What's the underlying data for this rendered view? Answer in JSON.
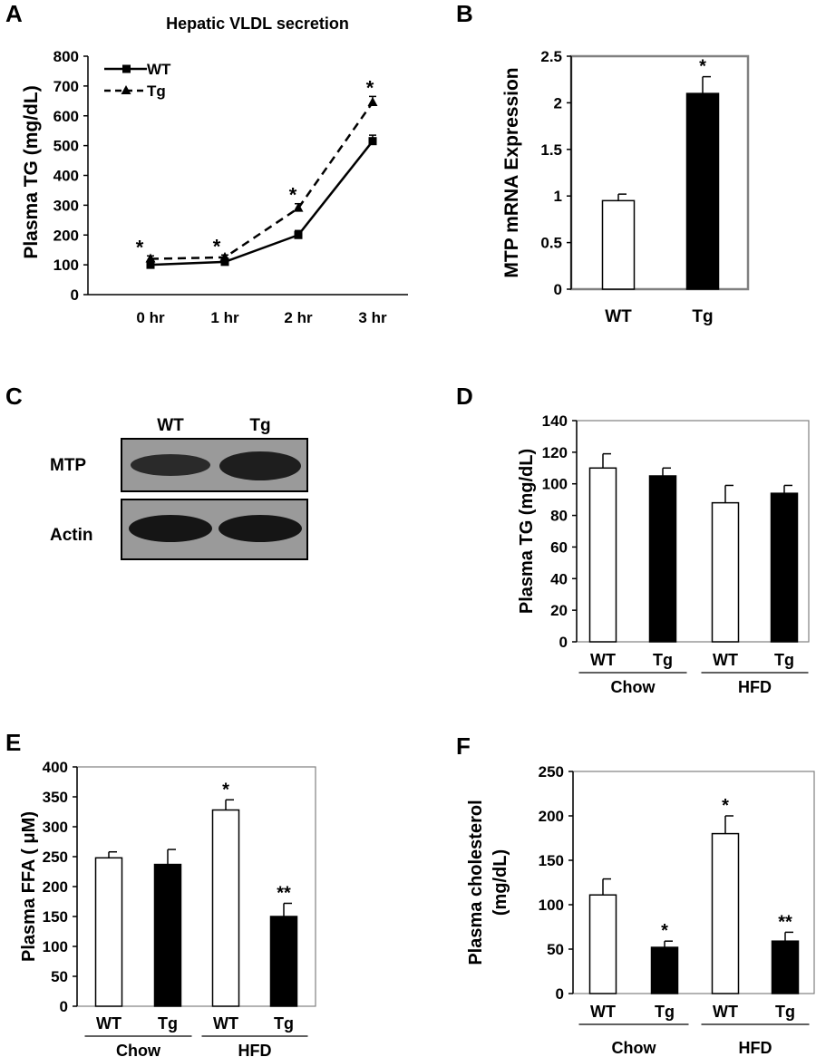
{
  "colors": {
    "wt_fill": "#ffffff",
    "tg_fill": "#000000",
    "frame": "#808080",
    "blot_bg": "#9a9a9a",
    "band": "#1e1e1e"
  },
  "chart_data": [
    {
      "panel": "A",
      "type": "line",
      "title": "Hepatic VLDL secretion",
      "ylabel": "Plasma TG (mg/dL)",
      "xlabel": "",
      "categories": [
        "0 hr",
        "1 hr",
        "2 hr",
        "3 hr"
      ],
      "yticks": [
        "0",
        "100",
        "200",
        "300",
        "400",
        "500",
        "600",
        "700",
        "800"
      ],
      "ylim": [
        0,
        800
      ],
      "series": [
        {
          "name": "WT",
          "values": [
            100,
            110,
            200,
            515
          ],
          "errors": [
            10,
            8,
            15,
            20
          ],
          "marker": "square",
          "dash": "solid"
        },
        {
          "name": "Tg",
          "values": [
            120,
            125,
            290,
            645
          ],
          "errors": [
            10,
            8,
            15,
            20
          ],
          "marker": "triangle",
          "dash": "dashed"
        }
      ],
      "annotations": [
        "*",
        "*",
        "*",
        "*"
      ],
      "legend": "top-left"
    },
    {
      "panel": "B",
      "type": "bar",
      "ylabel": "MTP mRNA Expression",
      "xlabel": "",
      "categories": [
        "WT",
        "Tg"
      ],
      "values": [
        0.95,
        2.1
      ],
      "errors": [
        0.07,
        0.18
      ],
      "yticks": [
        "0",
        "0.5",
        "1",
        "1.5",
        "2",
        "2.5"
      ],
      "ylim": [
        0,
        2.5
      ],
      "annotations": [
        "",
        "*"
      ]
    },
    {
      "panel": "D",
      "type": "bar",
      "ylabel": "Plasma TG (mg/dL)",
      "xlabel": "",
      "categories": [
        "WT",
        "Tg",
        "WT",
        "Tg"
      ],
      "groups": [
        "Chow",
        "HFD"
      ],
      "values": [
        110,
        105,
        88,
        94
      ],
      "errors": [
        9,
        5,
        11,
        5
      ],
      "yticks": [
        "0",
        "20",
        "40",
        "60",
        "80",
        "100",
        "120",
        "140"
      ],
      "ylim": [
        0,
        140
      ],
      "annotations": [
        "",
        "",
        "",
        ""
      ]
    },
    {
      "panel": "E",
      "type": "bar",
      "ylabel": "Plasma FFA ( μM)",
      "xlabel": "",
      "categories": [
        "WT",
        "Tg",
        "WT",
        "Tg"
      ],
      "groups": [
        "Chow",
        "HFD"
      ],
      "values": [
        248,
        237,
        328,
        150
      ],
      "errors": [
        10,
        25,
        17,
        22
      ],
      "yticks": [
        "0",
        "50",
        "100",
        "150",
        "200",
        "250",
        "300",
        "350",
        "400"
      ],
      "ylim": [
        0,
        400
      ],
      "annotations": [
        "",
        "",
        "*",
        "**"
      ]
    },
    {
      "panel": "F",
      "type": "bar",
      "ylabel": "Plasma cholesterol (mg/dL)",
      "ylabel_lines": [
        "Plasma cholesterol",
        "(mg/dL)"
      ],
      "xlabel": "",
      "categories": [
        "WT",
        "Tg",
        "WT",
        "Tg"
      ],
      "groups": [
        "Chow",
        "HFD"
      ],
      "values": [
        111,
        52,
        180,
        59
      ],
      "errors": [
        18,
        7,
        20,
        10
      ],
      "yticks": [
        "0",
        "50",
        "100",
        "150",
        "200",
        "250"
      ],
      "ylim": [
        0,
        250
      ],
      "annotations": [
        "",
        "*",
        "*",
        "**"
      ]
    }
  ],
  "blot": {
    "panel": "C",
    "columns": [
      "WT",
      "Tg"
    ],
    "rows": [
      "MTP",
      "Actin"
    ]
  }
}
